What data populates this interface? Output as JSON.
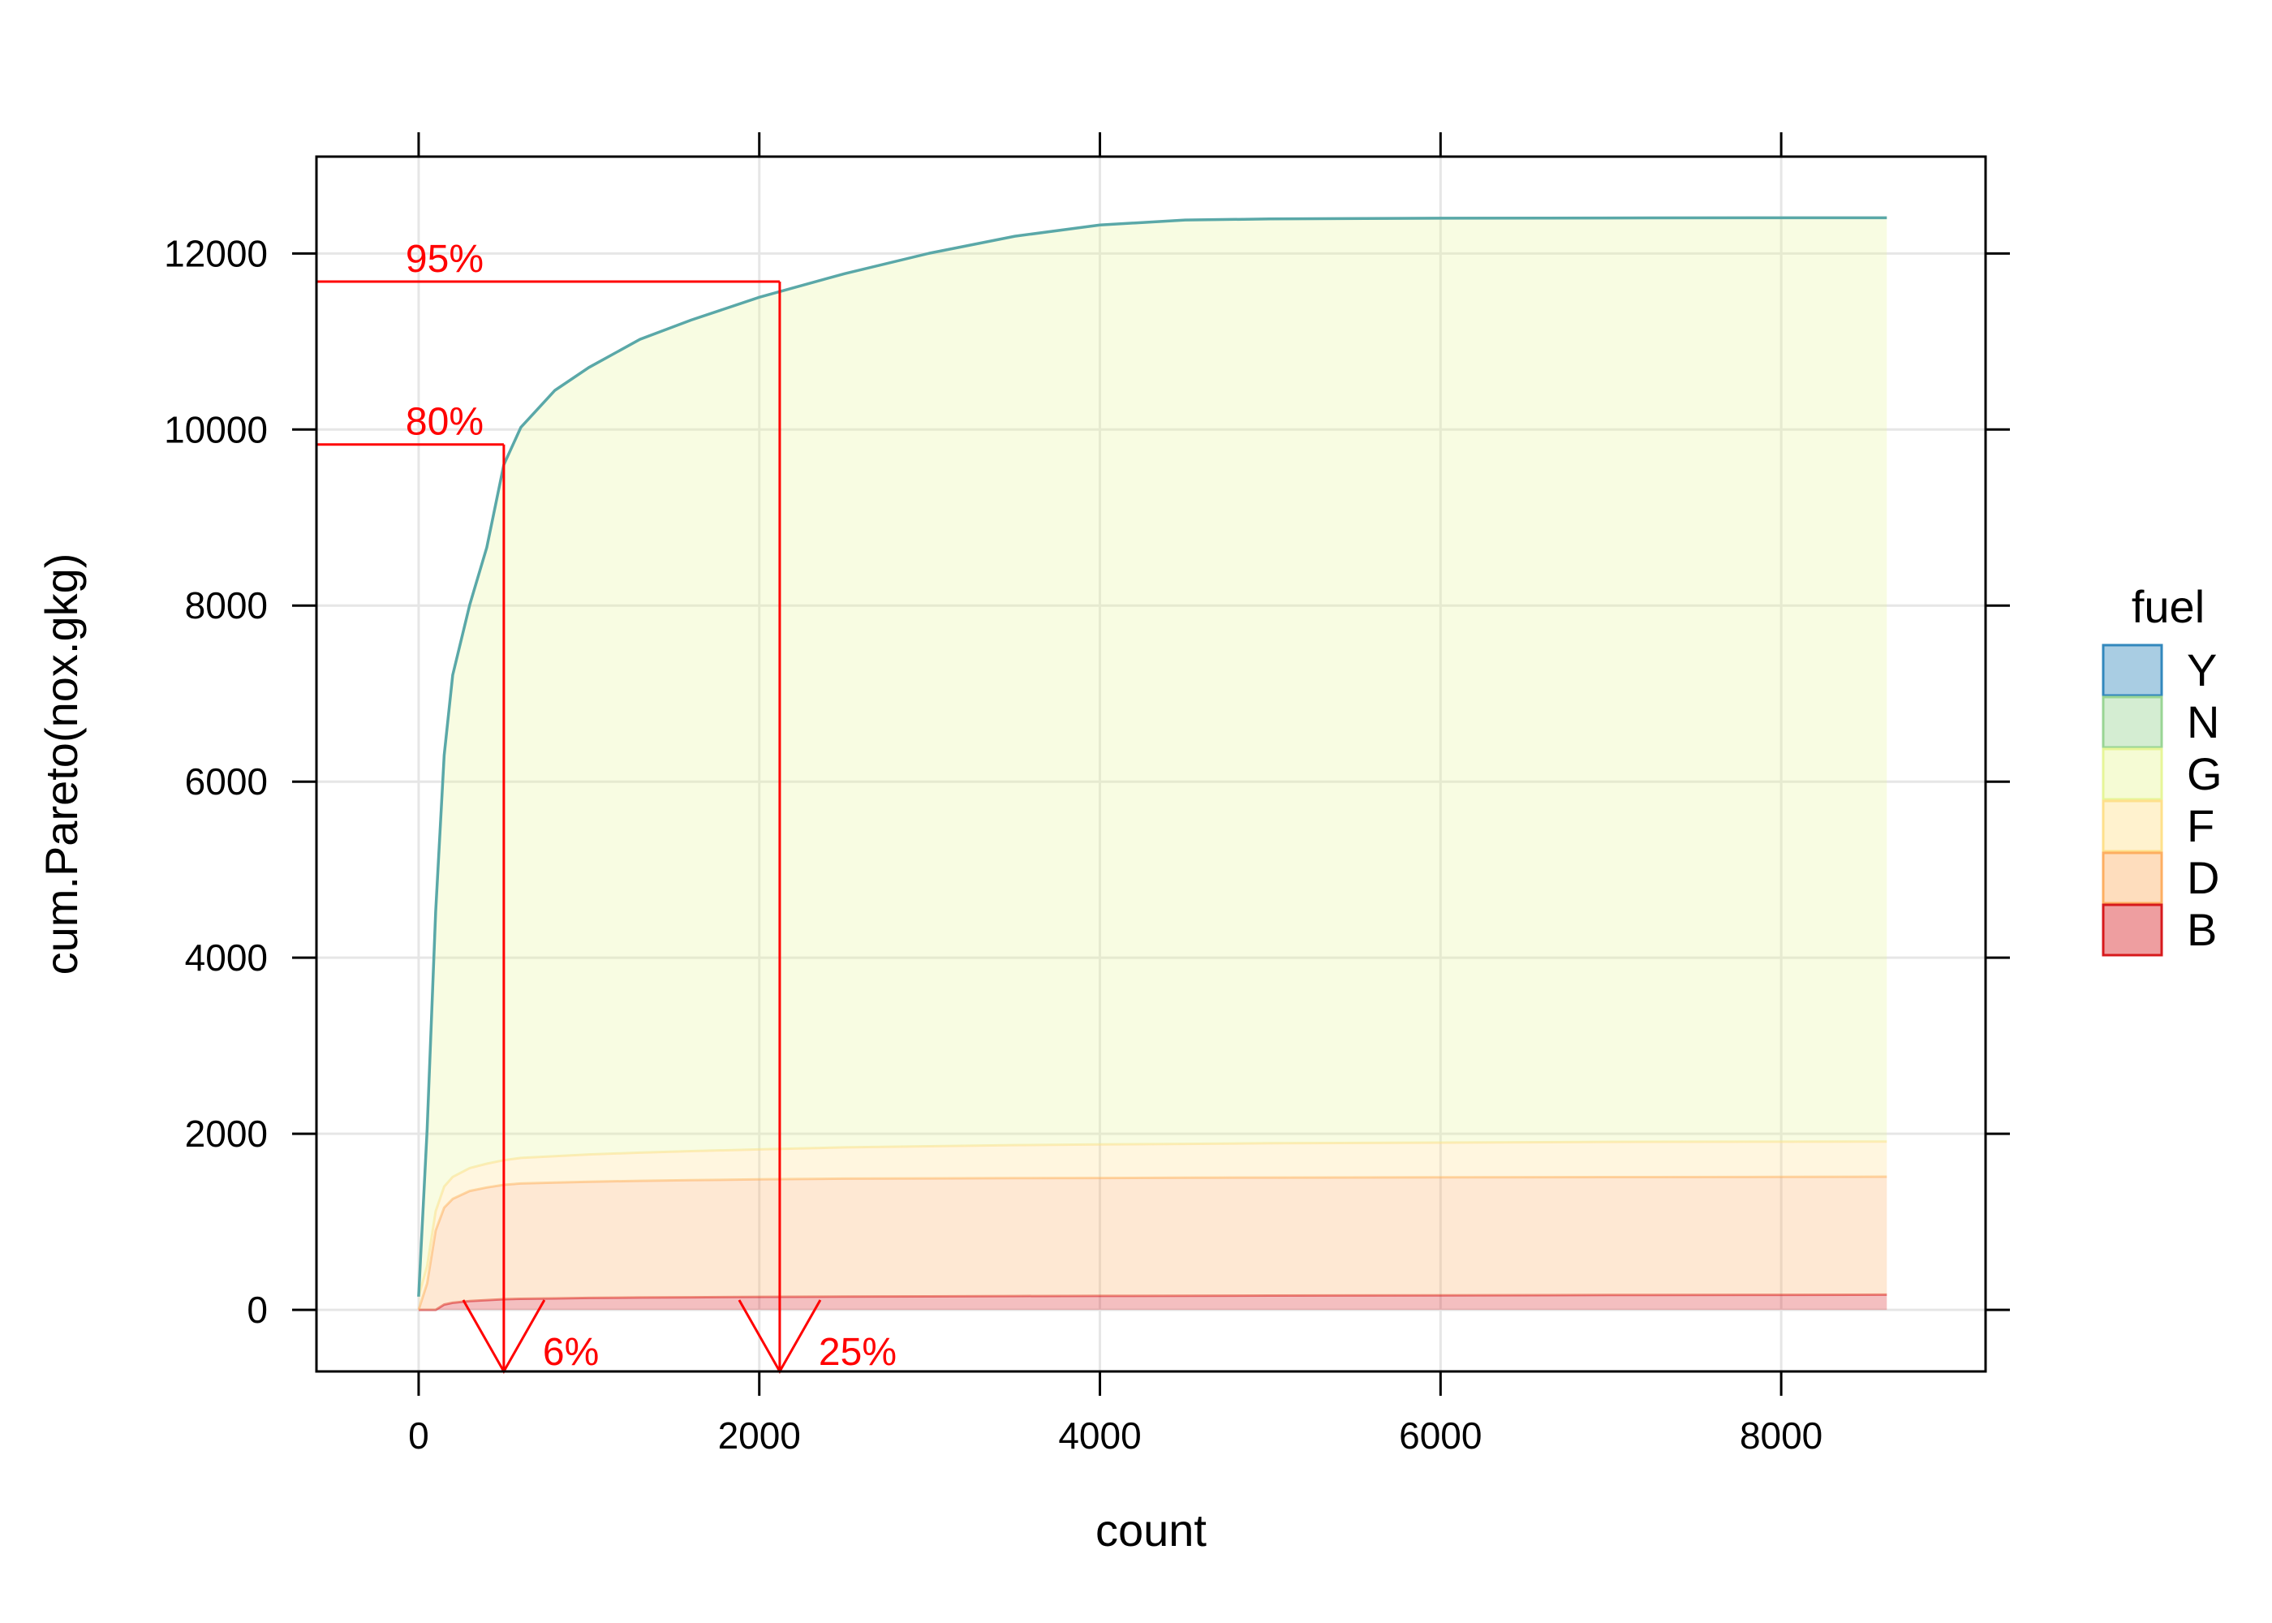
{
  "chart_data": {
    "type": "area",
    "stacked": true,
    "xlabel": "count",
    "ylabel": "cum.Pareto(nox.gkg)",
    "xlim": [
      -600,
      9200
    ],
    "ylim": [
      -700,
      13100
    ],
    "xticks": [
      0,
      2000,
      4000,
      6000,
      8000
    ],
    "yticks": [
      0,
      2000,
      4000,
      6000,
      8000,
      10000,
      12000
    ],
    "xtick_labels": [
      "0",
      "2000",
      "4000",
      "6000",
      "8000"
    ],
    "ytick_labels": [
      "0",
      "2000",
      "4000",
      "6000",
      "8000",
      "10000",
      "12000"
    ],
    "grid": true,
    "legend": {
      "title": "fuel",
      "placement": "right",
      "entries": [
        "Y",
        "N",
        "G",
        "F",
        "D",
        "B"
      ]
    },
    "x": [
      0,
      50,
      100,
      150,
      200,
      300,
      400,
      500,
      600,
      800,
      1000,
      1300,
      1600,
      2000,
      2500,
      3000,
      3500,
      4000,
      4500,
      5000,
      6000,
      7000,
      8000,
      8620
    ],
    "series": [
      {
        "name": "B",
        "color": "#d7191c",
        "values": [
          0,
          0,
          0,
          60,
          80,
          100,
          110,
          120,
          125,
          130,
          135,
          140,
          143,
          147,
          150,
          153,
          156,
          158,
          160,
          162,
          165,
          168,
          170,
          172
        ]
      },
      {
        "name": "D",
        "color": "#fdae61",
        "values": [
          0,
          300,
          900,
          1100,
          1180,
          1250,
          1280,
          1300,
          1310,
          1315,
          1320,
          1325,
          1330,
          1335,
          1340,
          1340,
          1340,
          1340,
          1340,
          1340,
          1340,
          1340,
          1340,
          1340
        ]
      },
      {
        "name": "F",
        "color": "#fee08b",
        "values": [
          150,
          200,
          220,
          240,
          250,
          260,
          270,
          280,
          290,
          300,
          310,
          320,
          330,
          340,
          355,
          365,
          375,
          380,
          385,
          390,
          395,
          400,
          400,
          400
        ]
      },
      {
        "name": "G",
        "color": "#e6f598",
        "values": [
          0,
          1550,
          3400,
          4900,
          5700,
          6400,
          7000,
          7900,
          8300,
          8700,
          8940,
          9240,
          9440,
          9680,
          9925,
          10145,
          10325,
          10445,
          10495,
          10500,
          10500,
          10495,
          10495,
          10493
        ]
      },
      {
        "name": "N",
        "color": "#99d594",
        "values": [
          0,
          0,
          0,
          0,
          0,
          0,
          0,
          0,
          0,
          0,
          0,
          0,
          0,
          0,
          0,
          0,
          0,
          0,
          0,
          0,
          0,
          0,
          0,
          0
        ]
      },
      {
        "name": "Y",
        "color": "#3288bd",
        "values": [
          0,
          0,
          0,
          0,
          0,
          0,
          0,
          0,
          0,
          0,
          0,
          0,
          0,
          0,
          0,
          0,
          0,
          0,
          0,
          0,
          0,
          0,
          0,
          0
        ]
      }
    ],
    "annotations": [
      {
        "label": "80%",
        "x": 500,
        "y": 9830,
        "arrow_label": "6%",
        "color": "#ff0000"
      },
      {
        "label": "95%",
        "x": 2120,
        "y": 11680,
        "arrow_label": "25%",
        "color": "#ff0000"
      }
    ]
  }
}
